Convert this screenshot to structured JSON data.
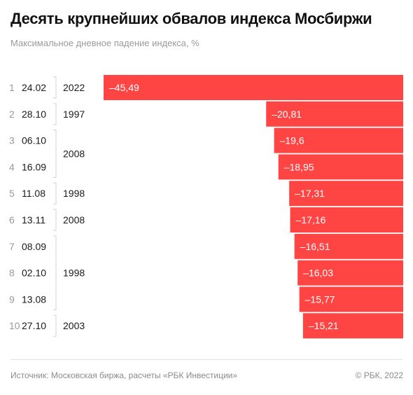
{
  "title": "Десять крупнейших обвалов индекса Мосбиржи",
  "subtitle": "Максимальное дневное падение индекса, %",
  "footer": {
    "source": "Источник:  Московская биржа, расчеты «РБК Инвестиции»",
    "copyright": "©  РБК, 2022"
  },
  "colors": {
    "bar": "#ff4444",
    "rank": "#9a9a9a",
    "text": "#1a1a1a",
    "bracket": "#d8d8d8"
  },
  "chart_data": {
    "type": "bar",
    "orientation": "horizontal",
    "ranks": [
      "1",
      "2",
      "3",
      "4",
      "5",
      "6",
      "7",
      "8",
      "9",
      "10"
    ],
    "categories": [
      "24.02",
      "28.10",
      "06.10",
      "16.09",
      "11.08",
      "13.11",
      "08.09",
      "02.10",
      "13.08",
      "27.10"
    ],
    "values": [
      -45.49,
      -20.81,
      -19.6,
      -18.95,
      -17.31,
      -17.16,
      -16.51,
      -16.03,
      -15.77,
      -15.21
    ],
    "value_labels": [
      "–45,49",
      "–20,81",
      "–19,6",
      "–18,95",
      "–17,31",
      "–17,16",
      "–16,51",
      "–16,03",
      "–15,77",
      "–15,21"
    ],
    "year_groups": [
      {
        "label": "2022",
        "rows": [
          0,
          0
        ]
      },
      {
        "label": "1997",
        "rows": [
          1,
          1
        ]
      },
      {
        "label": "2008",
        "rows": [
          2,
          3
        ]
      },
      {
        "label": "1998",
        "rows": [
          4,
          4
        ]
      },
      {
        "label": "2008",
        "rows": [
          5,
          5
        ]
      },
      {
        "label": "1998",
        "rows": [
          6,
          8
        ]
      },
      {
        "label": "2003",
        "rows": [
          9,
          9
        ]
      }
    ]
  }
}
